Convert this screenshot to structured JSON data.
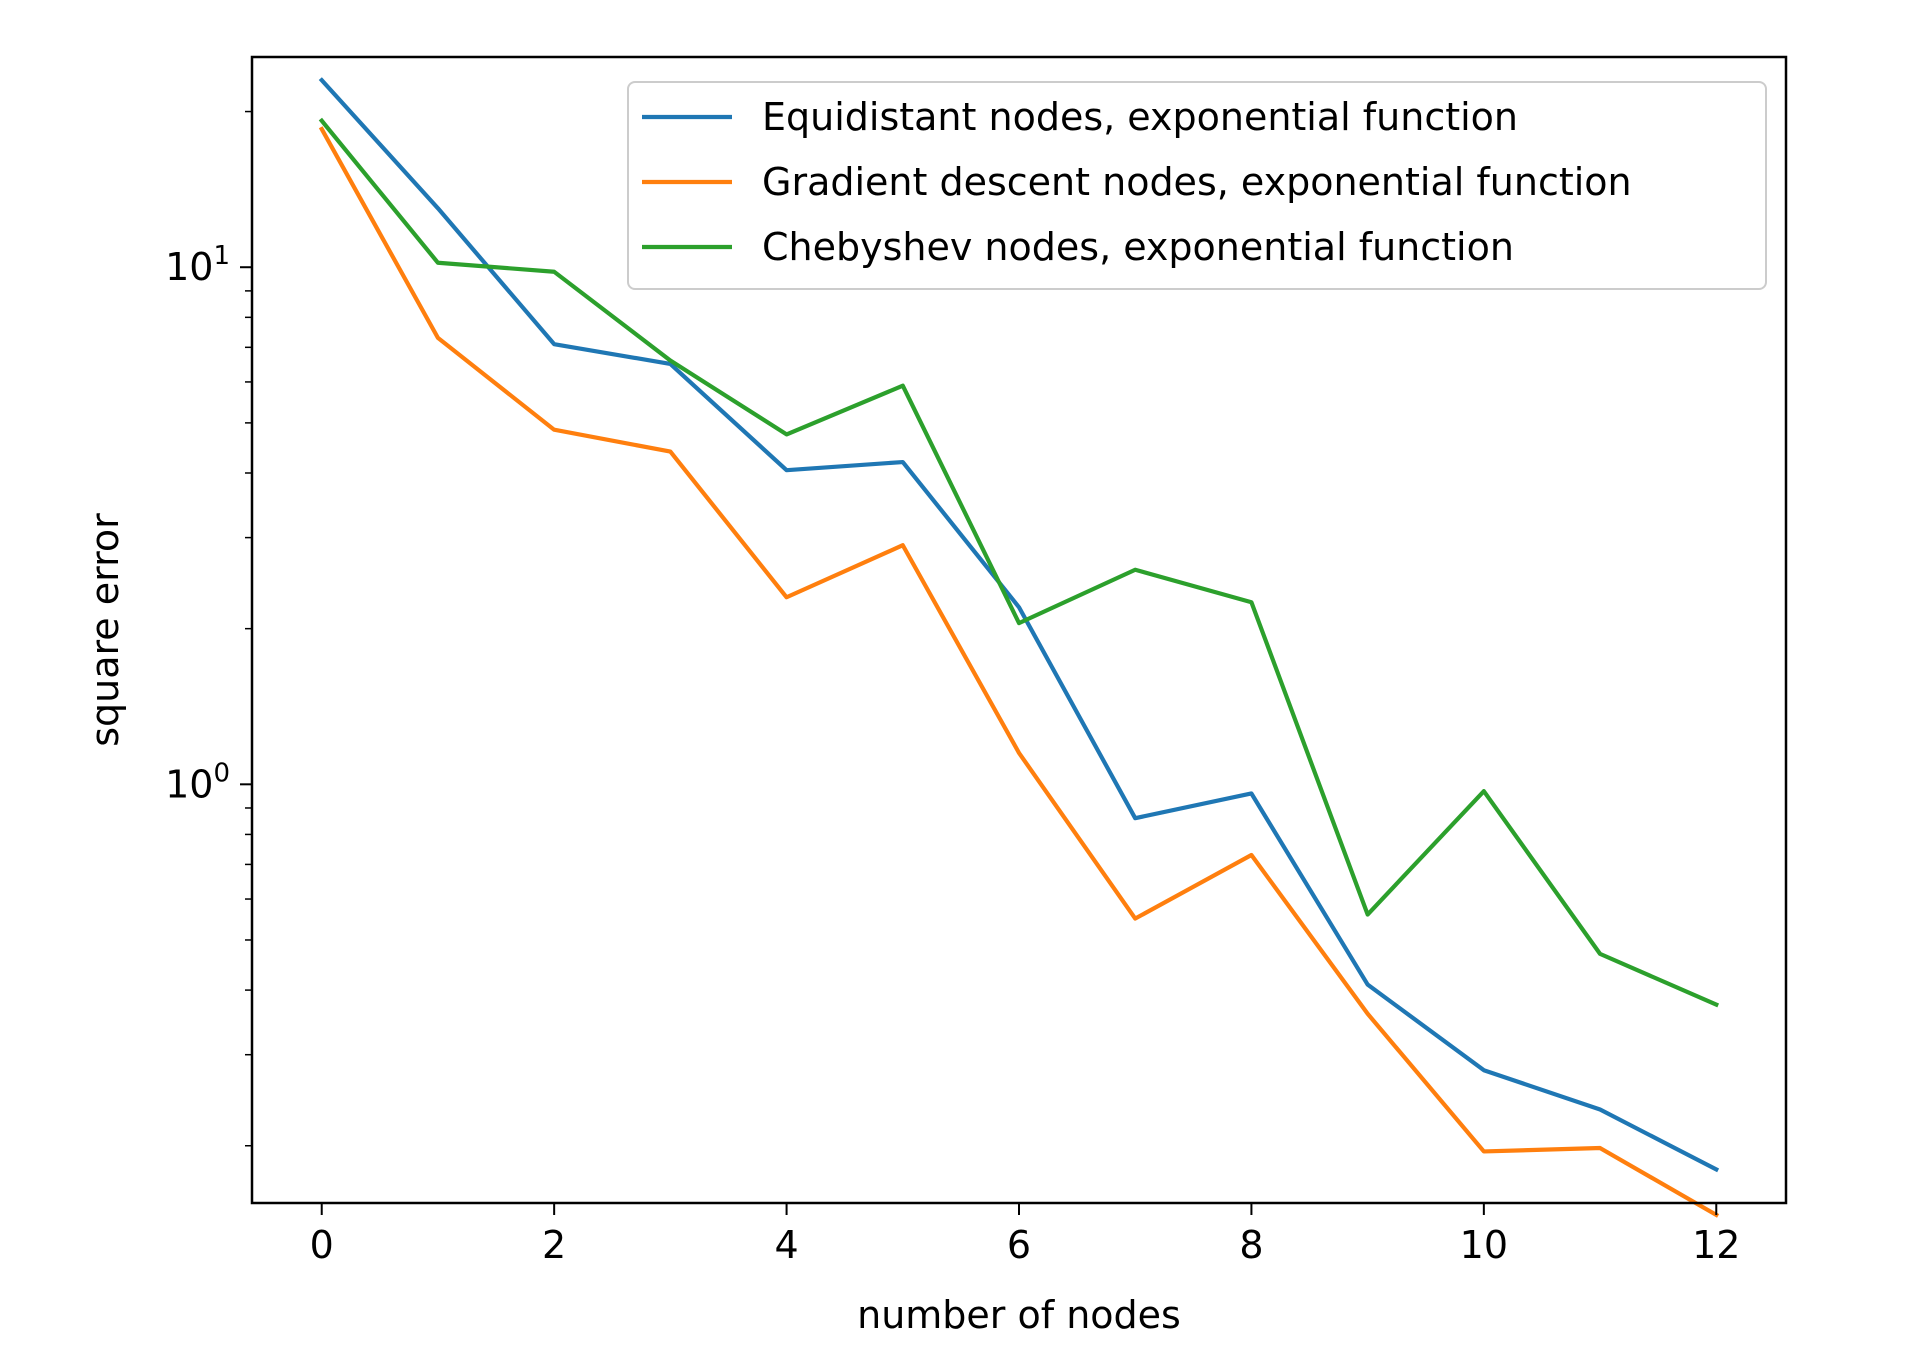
{
  "chart_data": {
    "type": "line",
    "title": "",
    "xlabel": "number of nodes",
    "ylabel": "square error",
    "yscale": "log",
    "xlim": [
      -0.6,
      12.6
    ],
    "ylim": [
      0.155,
      25.5
    ],
    "grid": false,
    "legend_position": "top-right",
    "x_ticks": [
      {
        "value": 0,
        "label": "0"
      },
      {
        "value": 2,
        "label": "2"
      },
      {
        "value": 4,
        "label": "4"
      },
      {
        "value": 6,
        "label": "6"
      },
      {
        "value": 8,
        "label": "8"
      },
      {
        "value": 10,
        "label": "10"
      },
      {
        "value": 12,
        "label": "12"
      }
    ],
    "y_ticks": [
      {
        "value": 1,
        "base": "10",
        "exponent": "0"
      },
      {
        "value": 10,
        "base": "10",
        "exponent": "1"
      }
    ],
    "y_minor_ticks": [
      0.2,
      0.3,
      0.4,
      0.5,
      0.6,
      0.7,
      0.8,
      0.9,
      2,
      3,
      4,
      5,
      6,
      7,
      8,
      9,
      20
    ],
    "x": [
      0,
      1,
      2,
      3,
      4,
      5,
      6,
      7,
      8,
      9,
      10,
      11,
      12
    ],
    "series": [
      {
        "name": "Equidistant nodes, exponential function",
        "color": "#1f77b4",
        "values": [
          23.0,
          13.0,
          7.1,
          6.5,
          4.05,
          4.2,
          2.2,
          0.86,
          0.96,
          0.41,
          0.28,
          0.235,
          0.18
        ]
      },
      {
        "name": "Gradient descent nodes, exponential function",
        "color": "#ff7f0e",
        "values": [
          18.5,
          7.3,
          4.85,
          4.4,
          2.3,
          2.9,
          1.15,
          0.55,
          0.73,
          0.36,
          0.195,
          0.198,
          0.147
        ]
      },
      {
        "name": "Chebyshev nodes, exponential function",
        "color": "#2ca02c",
        "values": [
          19.2,
          10.2,
          9.8,
          6.6,
          4.75,
          5.9,
          2.05,
          2.6,
          2.25,
          0.56,
          0.97,
          0.47,
          0.375
        ]
      }
    ]
  }
}
